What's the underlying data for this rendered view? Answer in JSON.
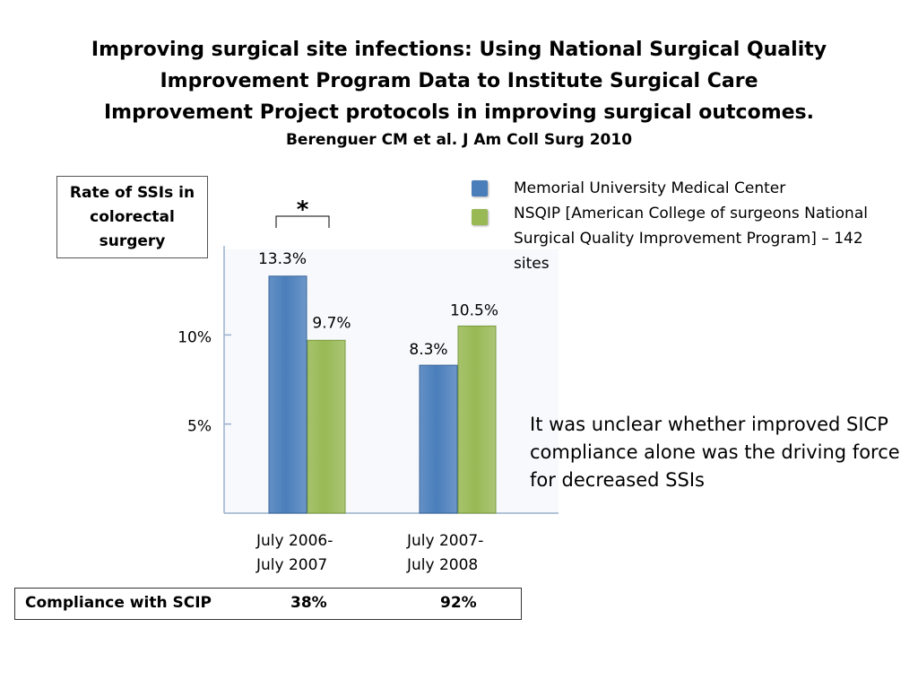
{
  "slide": {
    "title_lines": [
      "Improving surgical site infections: Using National Surgical Quality",
      "Improvement Program Data to Institute Surgical Care",
      "Improvement Project protocols in improving surgical outcomes."
    ],
    "citation": "Berenguer CM et al. J Am Coll Surg 2010",
    "note": "It was unclear whether improved SICP compliance alone was the driving force for decreased SSIs",
    "compliance": {
      "label": "Compliance with SCIP",
      "values": [
        "38%",
        "92%"
      ]
    }
  },
  "chart_data": {
    "type": "bar",
    "ylabel": "Rate of SSIs in colorectal surgery",
    "categories": [
      [
        "July 2006-",
        "July 2007"
      ],
      [
        "July 2007-",
        "July 2008"
      ]
    ],
    "series": [
      {
        "name": "Memorial University Medical Center",
        "values": [
          13.3,
          8.3
        ],
        "labels": [
          "13.3%",
          "8.3%"
        ],
        "color": "#4a7ebb"
      },
      {
        "name": "NSQIP [American College of surgeons National Surgical Quality Improvement Program] – 142 sites",
        "values": [
          9.7,
          10.5
        ],
        "labels": [
          "9.7%",
          "10.5%"
        ],
        "color": "#98b954"
      }
    ],
    "yticks": [
      {
        "value": 5,
        "label": "5%"
      },
      {
        "value": 10,
        "label": "10%"
      }
    ],
    "ylim": [
      0,
      14.8
    ],
    "significance": {
      "category_index": 0,
      "symbol": "*"
    },
    "legend_position": "top-right"
  }
}
